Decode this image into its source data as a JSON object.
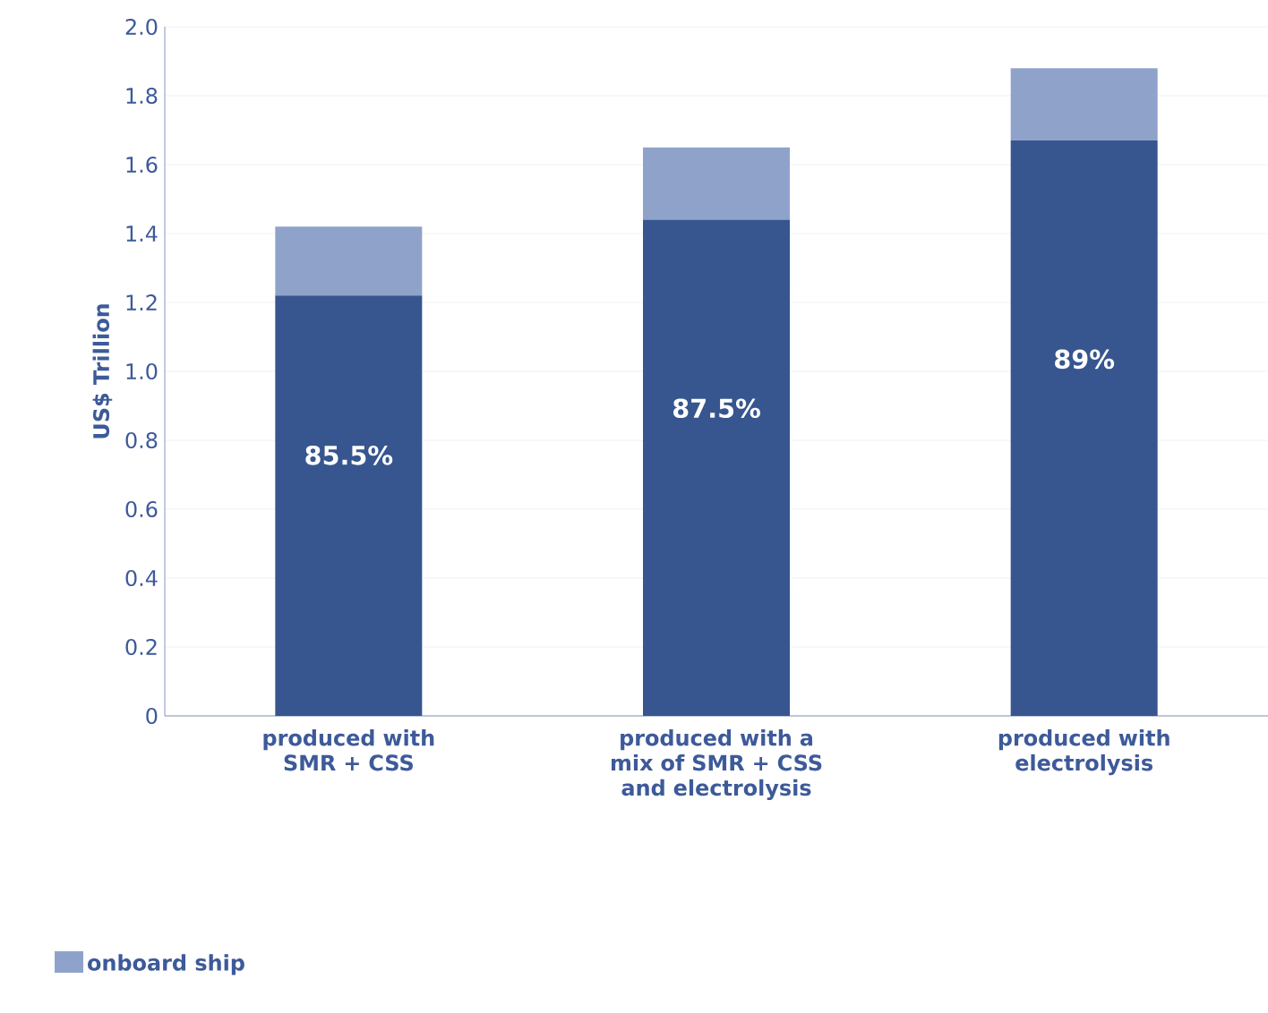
{
  "chart_data": {
    "type": "bar",
    "stacked": true,
    "ylabel": "US$ Trillion",
    "categories": [
      "produced with SMR + CSS",
      "produced with a mix of SMR + CSS and electrolysis",
      "produced with electrolysis"
    ],
    "series": [
      {
        "color": "#37568f",
        "values": [
          1.22,
          1.44,
          1.67
        ]
      },
      {
        "name": "onboard ship",
        "color": "#8fa3ca",
        "values": [
          0.2,
          0.21,
          0.21
        ]
      }
    ],
    "ylim": [
      0,
      2.0
    ],
    "yticks": [
      0,
      {
        "value": 0.2,
        "label": "0.2"
      },
      {
        "value": 0.4,
        "label": "0.4"
      },
      {
        "value": 0.6,
        "label": "0.6"
      },
      {
        "value": 0.8,
        "label": "0.8"
      },
      {
        "value": 1.0,
        "label": "1.0"
      },
      {
        "value": 1.2,
        "label": "1.2"
      },
      {
        "value": 1.4,
        "label": "1.4"
      },
      {
        "value": 1.6,
        "label": "1.6"
      },
      {
        "value": 1.8,
        "label": "1.8"
      },
      {
        "value": 2.0,
        "label": "2.0"
      }
    ],
    "annotations": [
      "85.5%",
      "87.5%",
      "89%"
    ],
    "grid": "y",
    "legend": "bottom left"
  }
}
